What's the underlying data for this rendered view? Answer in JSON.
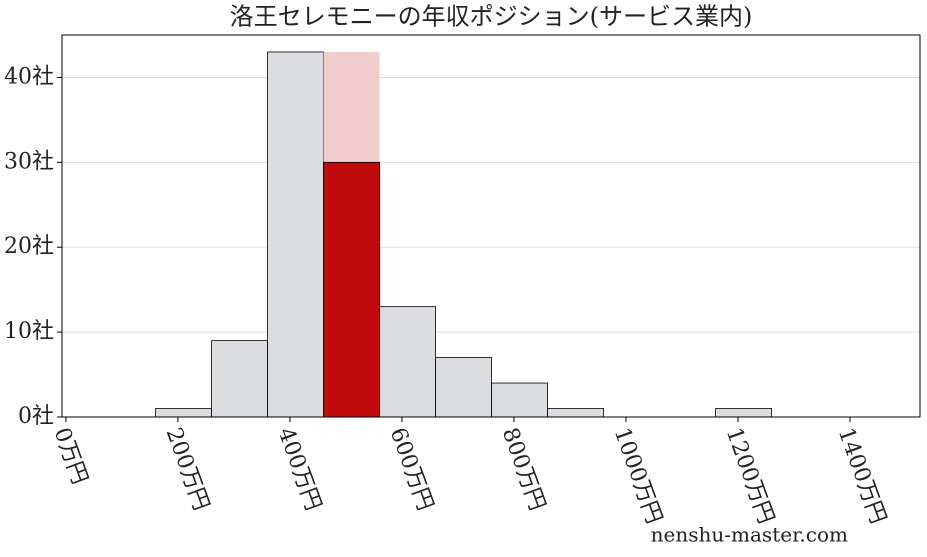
{
  "chart_data": {
    "type": "histogram",
    "title": "洛王セレモニーの年収ポジション(サービス業内)",
    "bins": [
      160,
      260,
      360,
      460,
      560,
      660,
      760,
      860,
      960,
      1060,
      1160,
      1260
    ],
    "values": [
      1,
      9,
      43,
      30,
      13,
      7,
      4,
      1,
      0,
      0,
      1
    ],
    "color": "#dcdde0",
    "highlight_index": 3,
    "highlight_color": "#bf0b0b",
    "highlight_background": 43,
    "highlight_background_color": "#f0cccc",
    "xlim": [
      -7,
      1525
    ],
    "xticks": [
      {
        "value": 0,
        "label": "0万円"
      },
      {
        "value": 200,
        "label": "200万円"
      },
      {
        "value": 400,
        "label": "400万円"
      },
      {
        "value": 600,
        "label": "600万円"
      },
      {
        "value": 800,
        "label": "800万円"
      },
      {
        "value": 1000,
        "label": "1000万円"
      },
      {
        "value": 1200,
        "label": "1200万円"
      },
      {
        "value": 1400,
        "label": "1400万円"
      }
    ],
    "ylim": [
      0,
      45
    ],
    "yticks": [
      {
        "value": 0,
        "label": "0社"
      },
      {
        "value": 10,
        "label": "10社"
      },
      {
        "value": 20,
        "label": "20社"
      },
      {
        "value": 30,
        "label": "30社"
      },
      {
        "value": 40,
        "label": "40社"
      }
    ],
    "grid": true,
    "watermark": "nenshu-master.com"
  }
}
